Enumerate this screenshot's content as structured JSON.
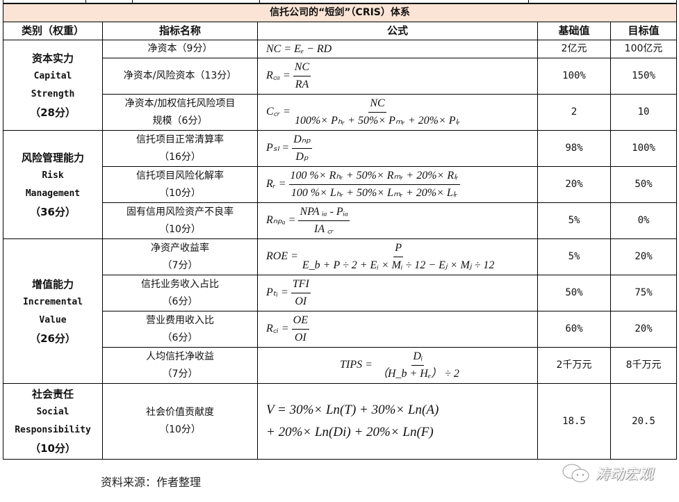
{
  "title": "信托公司的“短剑”（CRIS）体系",
  "headers": [
    "类别（权重）",
    "指标名称",
    "公式",
    "基础值",
    "目标值"
  ],
  "categories": [
    {
      "zh": "资本实力",
      "en1": "Capital",
      "en2": "Strength",
      "weight": "（28分）"
    },
    {
      "zh": "风险管理能力",
      "en1": "Risk",
      "en2": "Management",
      "weight": "（36分）"
    },
    {
      "zh": "增值能力",
      "en1": "Incremental",
      "en2": "Value",
      "weight": "（26分）"
    },
    {
      "zh": "社会责任",
      "en1": "Social",
      "en2": "Responsibility",
      "weight": "（10分）"
    }
  ],
  "rows": [
    {
      "name1": "净资本（9分）",
      "name2": "",
      "lhs": "NC = Eₑ − RD",
      "num": "",
      "den": "",
      "base": "2亿元",
      "target": "100亿元"
    },
    {
      "name1": "净资本/风险资本（13分）",
      "name2": "",
      "lhs": "R꜀ₐ =",
      "num": "NC",
      "den": "RA",
      "base": "100%",
      "target": "150%"
    },
    {
      "name1": "净资本/加权信托风险项目",
      "name2": "规模（6分）",
      "lhs": "C꜀ᵣ =",
      "num": "NC",
      "den": "100%× Pₕᵣ + 50%× Pₘᵣ + 20%× Pₗᵣ",
      "base": "2",
      "target": "10"
    },
    {
      "name1": "信托项目正常清算率",
      "name2": "（16分）",
      "lhs": "Pₛₗ =",
      "num": "Dₙₚ",
      "den": "Dₚ",
      "base": "98%",
      "target": "100%"
    },
    {
      "name1": "信托项目风险化解率",
      "name2": "（10分）",
      "lhs": "Rᵣ =",
      "num": "100 %× Rₕᵣ + 50%× Rₘᵣ + 20%× Rₗᵣ",
      "den": "100 %× Lₕᵣ + 50%× Lₘᵣ + 20%× Lₗᵣ",
      "base": "20%",
      "target": "50%"
    },
    {
      "name1": "固有信用风险资产不良率",
      "name2": "（10分）",
      "lhs": "Rₙₚₐ =",
      "num": "NPA ᵢₐ - Pᵢₐ",
      "den": "IA ꜀ᵣ",
      "base": "5%",
      "target": "0%"
    },
    {
      "name1": "净资产收益率",
      "name2": "（7分）",
      "lhs": "ROE =",
      "num": "P",
      "den": "E_b + P ÷ 2 + Eᵢ × Mᵢ ÷ 12 − Eⱼ × Mⱼ ÷ 12",
      "base": "5%",
      "target": "20%"
    },
    {
      "name1": "信托业务收入占比",
      "name2": "（6分）",
      "lhs": "Pₜᵢ =",
      "num": "TFI",
      "den": "OI",
      "base": "50%",
      "target": "75%"
    },
    {
      "name1": "营业费用收入比",
      "name2": "（6分）",
      "lhs": "R꜀ᵢ =",
      "num": "OE",
      "den": "OI",
      "base": "60%",
      "target": "20%"
    },
    {
      "name1": "人均信托净收益",
      "name2": "（7分）",
      "lhs": "TIPS =",
      "num": "Dᵢ",
      "den": "（H_b + Hₑ） ÷ 2",
      "base": "2千万元",
      "target": "8千万元"
    },
    {
      "name1": "社会价值贡献度",
      "name2": "（10分）",
      "lhs": "V = 30%× Ln(T) + 30%× Ln(A)",
      "num": "",
      "den": "+ 20%× Ln(Di) + 20%× Ln(F)",
      "base": "18.5",
      "target": "20.5"
    }
  ],
  "source": "资料来源：作者整理",
  "watermark": "涛动宏观",
  "colors": {
    "title_bg": "#fbe4d5",
    "border": "#000000"
  }
}
